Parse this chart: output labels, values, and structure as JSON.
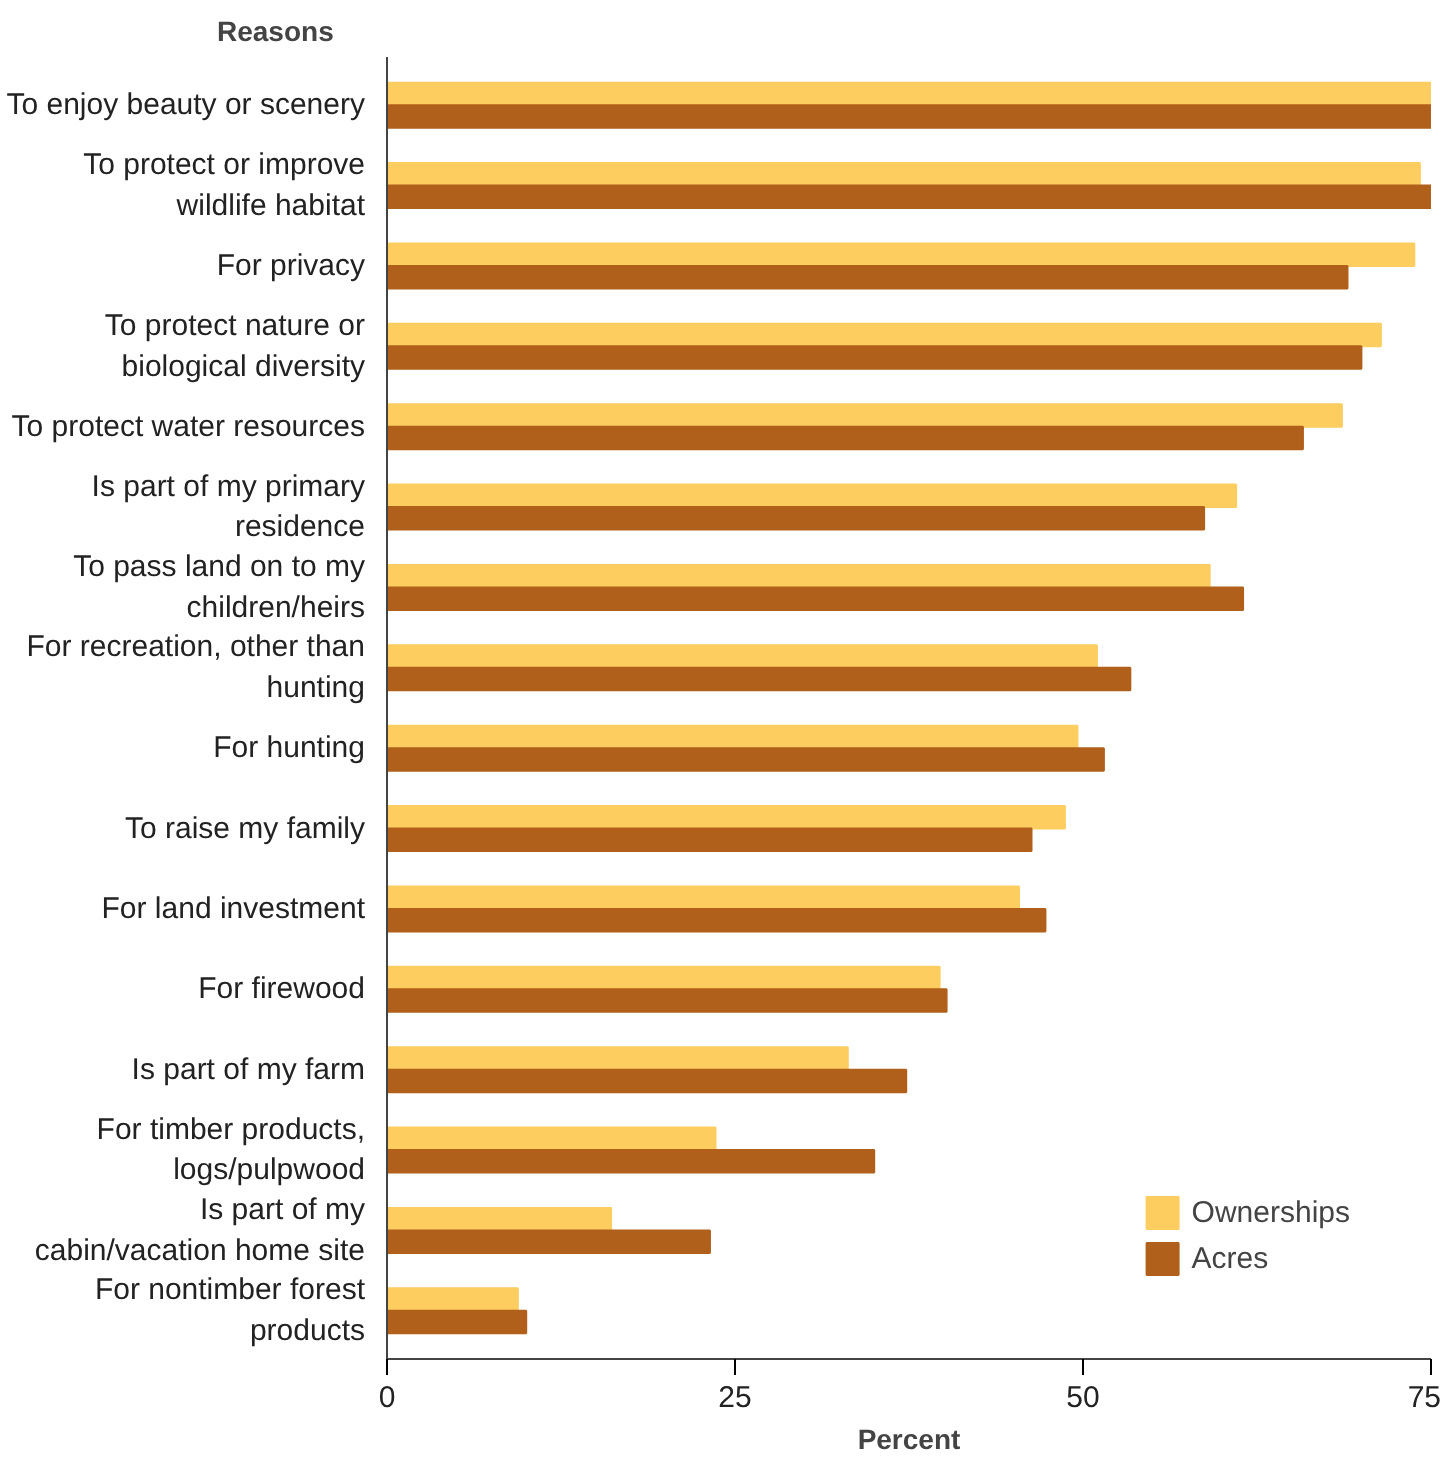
{
  "chart_data": {
    "type": "bar",
    "orientation": "horizontal",
    "ylabel": "Reasons",
    "xlabel": "Percent",
    "categories": [
      "To enjoy beauty or scenery",
      "To protect or improve wildlife habitat",
      "For privacy",
      "To protect nature or biological diversity",
      "To protect water resources",
      "Is part of my primary residence",
      "To pass land on to my children/heirs",
      "For recreation, other than hunting",
      "For hunting",
      "To raise my family",
      "For land investment",
      "For firewood",
      "Is part of my farm",
      "For timber products, logs/pulpwood",
      "Is part of my cabin/vacation home site",
      "For nontimber forest products"
    ],
    "series": [
      {
        "name": "Ownerships",
        "color": "#fdcd60",
        "values": [
          75,
          74.2,
          73.8,
          71.4,
          68.6,
          61.0,
          59.1,
          51.0,
          49.6,
          48.7,
          45.4,
          39.7,
          33.1,
          23.6,
          16.1,
          9.4
        ]
      },
      {
        "name": "Acres",
        "color": "#b0601a",
        "values": [
          75,
          75,
          69.0,
          70.0,
          65.8,
          58.7,
          61.5,
          53.4,
          51.5,
          46.3,
          47.3,
          40.2,
          37.3,
          35.0,
          23.2,
          10.0
        ]
      }
    ],
    "xlim": [
      0,
      75
    ],
    "xticks": [
      0,
      25,
      50,
      75
    ],
    "grid": false,
    "legend": "bottom right"
  }
}
